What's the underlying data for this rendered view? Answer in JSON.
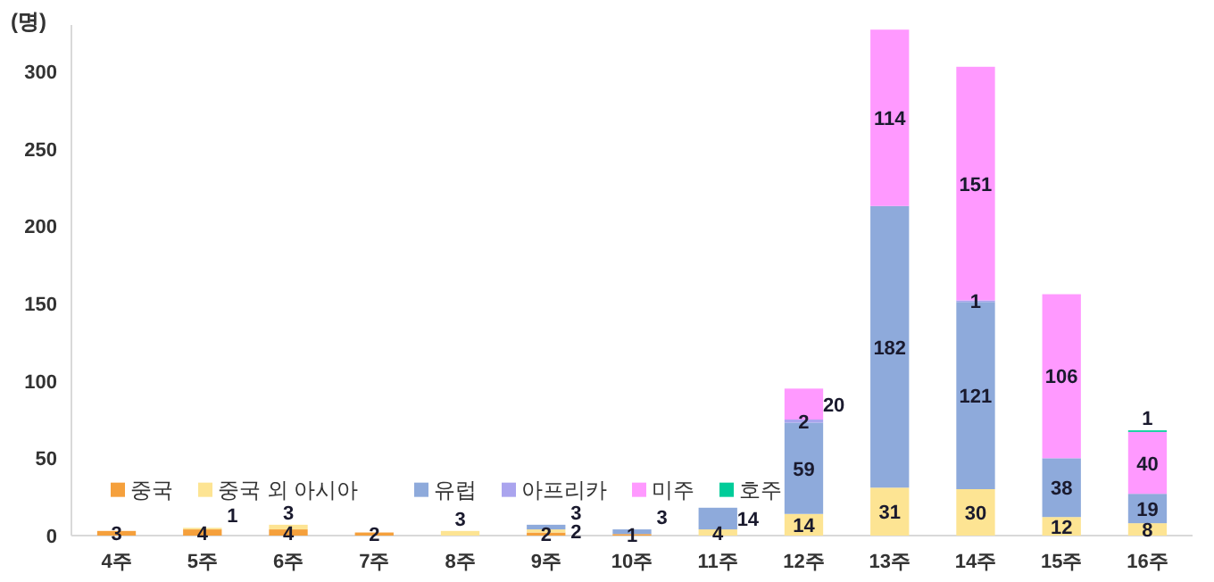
{
  "chart_data": {
    "type": "bar",
    "stacked": true,
    "ylabel": "(명)",
    "categories": [
      "4주",
      "5주",
      "6주",
      "7주",
      "8주",
      "9주",
      "10주",
      "11주",
      "12주",
      "13주",
      "14주",
      "15주",
      "16주"
    ],
    "series": [
      {
        "name": "중국",
        "color": "#f5a03c",
        "values": [
          3,
          4,
          4,
          2,
          null,
          2,
          1,
          null,
          null,
          null,
          null,
          null,
          null
        ]
      },
      {
        "name": "중국 외 아시아",
        "color": "#fde493",
        "values": [
          null,
          1,
          3,
          null,
          3,
          2,
          null,
          4,
          14,
          31,
          30,
          12,
          8
        ]
      },
      {
        "name": "유럽",
        "color": "#8eaadb",
        "values": [
          null,
          null,
          null,
          null,
          null,
          3,
          3,
          14,
          59,
          182,
          121,
          38,
          19
        ]
      },
      {
        "name": "아프리카",
        "color": "#aaa4ee",
        "values": [
          null,
          null,
          null,
          null,
          null,
          null,
          null,
          null,
          2,
          null,
          1,
          null,
          null
        ]
      },
      {
        "name": "미주",
        "color": "#ff99ff",
        "values": [
          null,
          null,
          null,
          null,
          null,
          null,
          null,
          null,
          20,
          114,
          151,
          106,
          40
        ]
      },
      {
        "name": "호주",
        "color": "#00cc99",
        "values": [
          null,
          null,
          null,
          null,
          null,
          null,
          null,
          null,
          null,
          null,
          null,
          null,
          1
        ]
      }
    ],
    "ylim": [
      0,
      330
    ],
    "yticks": [
      0,
      50,
      100,
      150,
      200,
      250,
      300
    ],
    "data_labels": true,
    "legend": "bottom left",
    "grid": false
  }
}
